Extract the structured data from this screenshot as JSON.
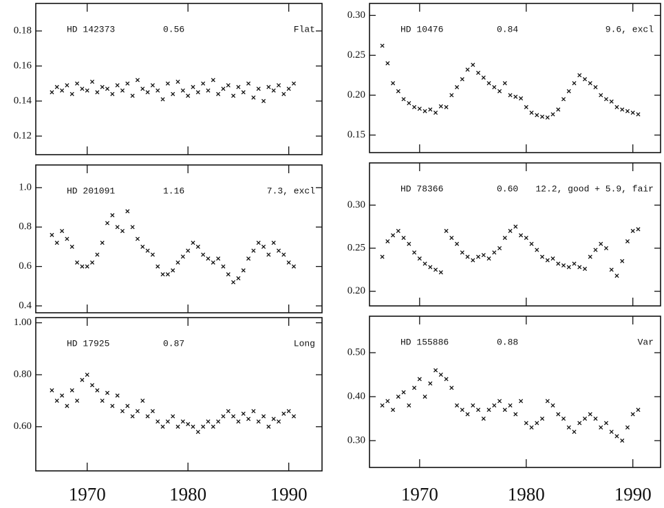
{
  "chart_data": [
    {
      "type": "scatter",
      "annotations": [
        "HD 142373",
        "0.56",
        "Flat"
      ],
      "xlim": [
        1964.9,
        1993.3
      ],
      "xticks": [
        1970,
        1980,
        1990
      ],
      "show_xtick_labels": false,
      "ylim": [
        0.1094,
        0.1957
      ],
      "yticks": [
        0.12,
        0.14,
        0.16,
        0.18
      ],
      "series": [
        {
          "color": "#111111",
          "x": [
            1966.5,
            1967,
            1967.5,
            1968,
            1968.5,
            1969,
            1969.5,
            1970,
            1970.5,
            1971,
            1971.5,
            1972,
            1972.5,
            1973,
            1973.5,
            1974,
            1974.5,
            1975,
            1975.5,
            1976,
            1976.5,
            1977,
            1977.5,
            1978,
            1978.5,
            1979,
            1979.5,
            1980,
            1980.5,
            1981,
            1981.5,
            1982,
            1982.5,
            1983,
            1983.5,
            1984,
            1984.5,
            1985,
            1985.5,
            1986,
            1986.5,
            1987,
            1987.5,
            1988,
            1988.5,
            1989,
            1989.5,
            1990,
            1990.5
          ],
          "values": [
            0.145,
            0.148,
            0.146,
            0.149,
            0.144,
            0.15,
            0.147,
            0.146,
            0.151,
            0.145,
            0.148,
            0.147,
            0.144,
            0.149,
            0.146,
            0.15,
            0.143,
            0.152,
            0.147,
            0.145,
            0.149,
            0.146,
            0.141,
            0.15,
            0.144,
            0.151,
            0.146,
            0.143,
            0.148,
            0.145,
            0.15,
            0.146,
            0.152,
            0.144,
            0.147,
            0.149,
            0.143,
            0.148,
            0.145,
            0.15,
            0.142,
            0.147,
            0.14,
            0.148,
            0.146,
            0.149,
            0.144,
            0.147,
            0.15
          ]
        }
      ]
    },
    {
      "type": "scatter",
      "annotations": [
        "HD 10476",
        "0.84",
        "9.6, excl"
      ],
      "xlim": [
        1965.3,
        1992.6
      ],
      "xticks": [
        1970,
        1980,
        1990
      ],
      "show_xtick_labels": false,
      "ylim": [
        0.128,
        0.315
      ],
      "yticks": [
        {
          "value": 0.15,
          "label": "0.15"
        },
        {
          "value": 0.2,
          "label": "0.20"
        },
        {
          "value": 0.25,
          "label": "0.25"
        },
        {
          "value": 0.3,
          "label": "0.30"
        }
      ],
      "series": [
        {
          "color": "#111111",
          "x": [
            1966.5,
            1967,
            1967.5,
            1968,
            1968.5,
            1969,
            1969.5,
            1970,
            1970.5,
            1971,
            1971.5,
            1972,
            1972.5,
            1973,
            1973.5,
            1974,
            1974.5,
            1975,
            1975.5,
            1976,
            1976.5,
            1977,
            1977.5,
            1978,
            1978.5,
            1979,
            1979.5,
            1980,
            1980.5,
            1981,
            1981.5,
            1982,
            1982.5,
            1983,
            1983.5,
            1984,
            1984.5,
            1985,
            1985.5,
            1986,
            1986.5,
            1987,
            1987.5,
            1988,
            1988.5,
            1989,
            1989.5,
            1990,
            1990.5
          ],
          "values": [
            0.262,
            0.24,
            0.215,
            0.205,
            0.195,
            0.19,
            0.185,
            0.183,
            0.18,
            0.182,
            0.178,
            0.186,
            0.185,
            0.2,
            0.21,
            0.22,
            0.232,
            0.238,
            0.228,
            0.222,
            0.215,
            0.21,
            0.205,
            0.215,
            0.2,
            0.198,
            0.196,
            0.185,
            0.178,
            0.175,
            0.173,
            0.172,
            0.176,
            0.182,
            0.195,
            0.205,
            0.215,
            0.225,
            0.22,
            0.215,
            0.21,
            0.2,
            0.195,
            0.192,
            0.185,
            0.182,
            0.18,
            0.178,
            0.176
          ]
        }
      ]
    },
    {
      "type": "scatter",
      "annotations": [
        "HD 201091",
        "1.16",
        "7.3, excl"
      ],
      "xlim": [
        1964.9,
        1993.3
      ],
      "xticks": [
        1970,
        1980,
        1990
      ],
      "show_xtick_labels": false,
      "ylim": [
        0.365,
        1.115
      ],
      "yticks": [
        0.4,
        0.6,
        0.8,
        {
          "value": 1,
          "label": "1.0"
        }
      ],
      "series": [
        {
          "color": "#111111",
          "x": [
            1966.5,
            1967,
            1967.5,
            1968,
            1968.5,
            1969,
            1969.5,
            1970,
            1970.5,
            1971,
            1971.5,
            1972,
            1972.5,
            1973,
            1973.5,
            1974,
            1974.5,
            1975,
            1975.5,
            1976,
            1976.5,
            1977,
            1977.5,
            1978,
            1978.5,
            1979,
            1979.5,
            1980,
            1980.5,
            1981,
            1981.5,
            1982,
            1982.5,
            1983,
            1983.5,
            1984,
            1984.5,
            1985,
            1985.5,
            1986,
            1986.5,
            1987,
            1987.5,
            1988,
            1988.5,
            1989,
            1989.5,
            1990,
            1990.5
          ],
          "values": [
            0.76,
            0.72,
            0.78,
            0.74,
            0.7,
            0.62,
            0.6,
            0.6,
            0.62,
            0.66,
            0.72,
            0.82,
            0.86,
            0.8,
            0.78,
            0.88,
            0.8,
            0.74,
            0.7,
            0.68,
            0.66,
            0.6,
            0.56,
            0.56,
            0.58,
            0.62,
            0.65,
            0.68,
            0.72,
            0.7,
            0.66,
            0.64,
            0.62,
            0.64,
            0.6,
            0.56,
            0.52,
            0.54,
            0.58,
            0.64,
            0.68,
            0.72,
            0.7,
            0.66,
            0.72,
            0.68,
            0.66,
            0.62,
            0.6
          ]
        }
      ]
    },
    {
      "type": "scatter",
      "annotations": [
        "HD 78366",
        "0.60",
        "12.2, good + 5.9, fair"
      ],
      "xlim": [
        1965.3,
        1992.6
      ],
      "xticks": [
        1970,
        1980,
        1990
      ],
      "show_xtick_labels": false,
      "ylim": [
        0.183,
        0.349
      ],
      "yticks": [
        {
          "value": 0.2,
          "label": "0.20"
        },
        {
          "value": 0.25,
          "label": "0.25"
        },
        {
          "value": 0.3,
          "label": "0.30"
        }
      ],
      "series": [
        {
          "color": "#111111",
          "x": [
            1966.5,
            1967,
            1967.5,
            1968,
            1968.5,
            1969,
            1969.5,
            1970,
            1970.5,
            1971,
            1971.5,
            1972,
            1972.5,
            1973,
            1973.5,
            1974,
            1974.5,
            1975,
            1975.5,
            1976,
            1976.5,
            1977,
            1977.5,
            1978,
            1978.5,
            1979,
            1979.5,
            1980,
            1980.5,
            1981,
            1981.5,
            1982,
            1982.5,
            1983,
            1983.5,
            1984,
            1984.5,
            1985,
            1985.5,
            1986,
            1986.5,
            1987,
            1987.5,
            1988,
            1988.5,
            1989,
            1989.5,
            1990,
            1990.5
          ],
          "values": [
            0.24,
            0.258,
            0.265,
            0.27,
            0.262,
            0.255,
            0.245,
            0.238,
            0.232,
            0.228,
            0.225,
            0.222,
            0.27,
            0.262,
            0.255,
            0.245,
            0.24,
            0.236,
            0.24,
            0.242,
            0.238,
            0.245,
            0.25,
            0.262,
            0.27,
            0.275,
            0.265,
            0.262,
            0.255,
            0.248,
            0.24,
            0.236,
            0.238,
            0.232,
            0.23,
            0.228,
            0.232,
            0.228,
            0.226,
            0.24,
            0.248,
            0.255,
            0.25,
            0.225,
            0.218,
            0.235,
            0.258,
            0.27,
            0.272
          ]
        }
      ]
    },
    {
      "type": "scatter",
      "annotations": [
        "HD 17925",
        "0.87",
        "Long"
      ],
      "xlim": [
        1964.9,
        1993.3
      ],
      "xticks": [
        1970,
        1980,
        1990
      ],
      "show_xtick_labels": true,
      "ylim": [
        0.43,
        1.02
      ],
      "yticks": [
        {
          "value": 0.6,
          "label": "0.60"
        },
        {
          "value": 0.8,
          "label": "0.80"
        },
        {
          "value": 1,
          "label": "1.00"
        }
      ],
      "series": [
        {
          "color": "#111111",
          "x": [
            1966.5,
            1967,
            1967.5,
            1968,
            1968.5,
            1969,
            1969.5,
            1970,
            1970.5,
            1971,
            1971.5,
            1972,
            1972.5,
            1973,
            1973.5,
            1974,
            1974.5,
            1975,
            1975.5,
            1976,
            1976.5,
            1977,
            1977.5,
            1978,
            1978.5,
            1979,
            1979.5,
            1980,
            1980.5,
            1981,
            1981.5,
            1982,
            1982.5,
            1983,
            1983.5,
            1984,
            1984.5,
            1985,
            1985.5,
            1986,
            1986.5,
            1987,
            1987.5,
            1988,
            1988.5,
            1989,
            1989.5,
            1990,
            1990.5
          ],
          "values": [
            0.74,
            0.7,
            0.72,
            0.68,
            0.74,
            0.7,
            0.78,
            0.8,
            0.76,
            0.74,
            0.7,
            0.73,
            0.68,
            0.72,
            0.66,
            0.68,
            0.64,
            0.66,
            0.7,
            0.64,
            0.66,
            0.62,
            0.6,
            0.62,
            0.64,
            0.6,
            0.62,
            0.61,
            0.6,
            0.58,
            0.6,
            0.62,
            0.6,
            0.62,
            0.64,
            0.66,
            0.64,
            0.62,
            0.65,
            0.63,
            0.66,
            0.62,
            0.64,
            0.6,
            0.63,
            0.62,
            0.65,
            0.66,
            0.64
          ]
        }
      ]
    },
    {
      "type": "scatter",
      "annotations": [
        "HD 155886",
        "0.88",
        "Var"
      ],
      "xlim": [
        1965.3,
        1992.6
      ],
      "xticks": [
        1970,
        1980,
        1990
      ],
      "show_xtick_labels": true,
      "ylim": [
        0.239,
        0.583
      ],
      "yticks": [
        {
          "value": 0.3,
          "label": "0.30"
        },
        {
          "value": 0.4,
          "label": "0.40"
        },
        {
          "value": 0.5,
          "label": "0.50"
        }
      ],
      "series": [
        {
          "color": "#111111",
          "x": [
            1966.5,
            1967,
            1967.5,
            1968,
            1968.5,
            1969,
            1969.5,
            1970,
            1970.5,
            1971,
            1971.5,
            1972,
            1972.5,
            1973,
            1973.5,
            1974,
            1974.5,
            1975,
            1975.5,
            1976,
            1976.5,
            1977,
            1977.5,
            1978,
            1978.5,
            1979,
            1979.5,
            1980,
            1980.5,
            1981,
            1981.5,
            1982,
            1982.5,
            1983,
            1983.5,
            1984,
            1984.5,
            1985,
            1985.5,
            1986,
            1986.5,
            1987,
            1987.5,
            1988,
            1988.5,
            1989,
            1989.5,
            1990,
            1990.5
          ],
          "values": [
            0.38,
            0.39,
            0.37,
            0.4,
            0.41,
            0.38,
            0.42,
            0.44,
            0.4,
            0.43,
            0.46,
            0.45,
            0.44,
            0.42,
            0.38,
            0.37,
            0.36,
            0.38,
            0.37,
            0.35,
            0.37,
            0.38,
            0.39,
            0.37,
            0.38,
            0.36,
            0.39,
            0.34,
            0.33,
            0.34,
            0.35,
            0.39,
            0.38,
            0.36,
            0.35,
            0.33,
            0.32,
            0.34,
            0.35,
            0.36,
            0.35,
            0.33,
            0.34,
            0.32,
            0.31,
            0.3,
            0.33,
            0.36,
            0.37
          ]
        }
      ]
    }
  ]
}
